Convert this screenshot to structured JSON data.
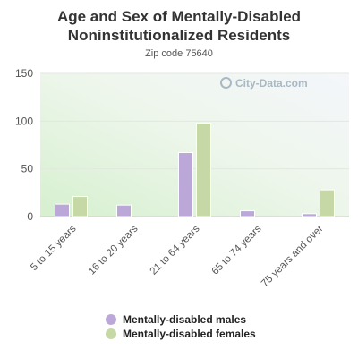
{
  "chart_data": {
    "type": "bar",
    "title": "Age and Sex of Mentally-Disabled Noninstitutionalized Residents",
    "subtitle": "Zip code 75640",
    "categories": [
      "5 to 15 years",
      "16 to 20 years",
      "21 to 64 years",
      "65 to 74 years",
      "75 years and over"
    ],
    "series": [
      {
        "name": "Mentally-disabled males",
        "color": "#bba8d8",
        "values": [
          13,
          12,
          67,
          6,
          3
        ]
      },
      {
        "name": "Mentally-disabled females",
        "color": "#c5d8a6",
        "values": [
          21,
          0,
          98,
          0,
          28
        ]
      }
    ],
    "yticks": [
      0,
      50,
      100,
      150
    ],
    "ylim": [
      0,
      150
    ],
    "grid": true,
    "legend_position": "bottom"
  },
  "watermark": "City-Data.com"
}
